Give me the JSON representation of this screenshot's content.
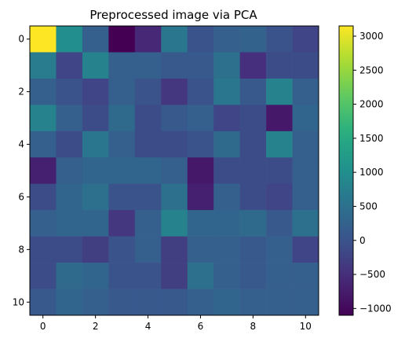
{
  "chart_data": {
    "type": "heatmap",
    "title": "Preprocessed image via PCA",
    "xlabel": "",
    "ylabel": "",
    "xlim": [
      -0.5,
      10.5
    ],
    "ylim": [
      10.5,
      -0.5
    ],
    "x_ticks": [
      0,
      2,
      4,
      6,
      8,
      10
    ],
    "y_ticks": [
      0,
      2,
      4,
      6,
      8,
      10
    ],
    "colormap": "viridis",
    "vmin": -1100,
    "vmax": 3150,
    "colorbar_ticks": [
      3000,
      2500,
      2000,
      1500,
      1000,
      500,
      0,
      -500,
      -1000
    ],
    "grid": false,
    "values": [
      [
        3150,
        1000,
        200,
        -1100,
        -600,
        600,
        0,
        200,
        250,
        0,
        -200
      ],
      [
        700,
        -200,
        800,
        200,
        200,
        100,
        100,
        500,
        -500,
        -100,
        -100
      ],
      [
        200,
        0,
        -200,
        200,
        0,
        -400,
        0,
        600,
        100,
        800,
        200
      ],
      [
        800,
        200,
        -100,
        400,
        -100,
        100,
        200,
        -200,
        -100,
        -800,
        300
      ],
      [
        200,
        -100,
        600,
        200,
        -100,
        -100,
        0,
        400,
        -100,
        800,
        200
      ],
      [
        -700,
        200,
        300,
        300,
        300,
        200,
        -800,
        -100,
        -100,
        -100,
        200
      ],
      [
        -100,
        300,
        500,
        0,
        0,
        500,
        -700,
        200,
        -100,
        -200,
        200
      ],
      [
        200,
        300,
        300,
        -400,
        200,
        800,
        300,
        300,
        400,
        100,
        500
      ],
      [
        -100,
        -100,
        -300,
        0,
        200,
        -300,
        200,
        200,
        100,
        200,
        -200
      ],
      [
        -100,
        400,
        300,
        0,
        0,
        -300,
        500,
        200,
        100,
        200,
        200
      ],
      [
        100,
        300,
        200,
        100,
        100,
        100,
        200,
        300,
        200,
        200,
        200
      ]
    ]
  }
}
